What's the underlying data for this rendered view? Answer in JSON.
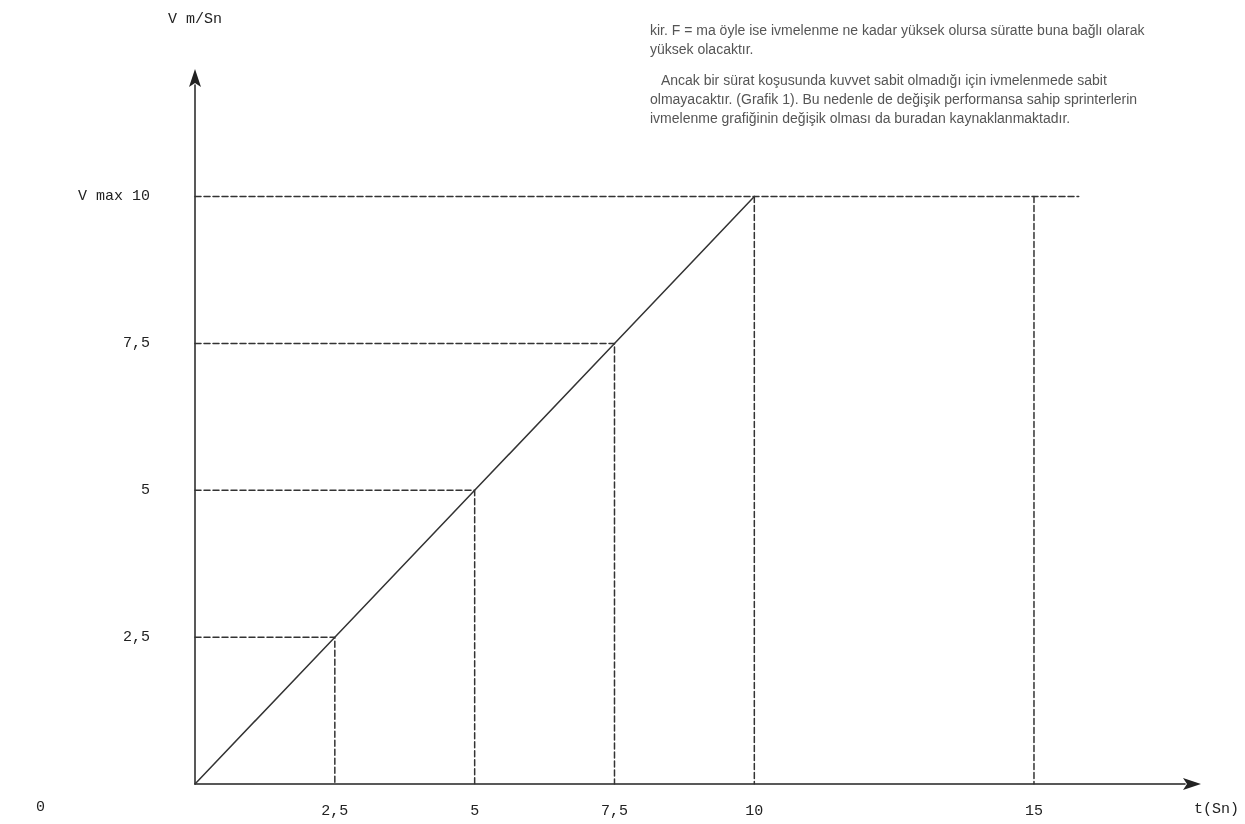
{
  "chart_data": {
    "type": "line",
    "ylabel": "V m/Sn",
    "xlabel": "t(Sn)",
    "xlim": [
      0,
      17.7
    ],
    "ylim": [
      0,
      11.9
    ],
    "xticks": [
      {
        "value": 2.5,
        "label": "2,5"
      },
      5,
      {
        "value": 7.5,
        "label": "7,5"
      },
      10,
      15
    ],
    "yticks": [
      {
        "value": 2.5,
        "label": "2,5"
      },
      5,
      {
        "value": 7.5,
        "label": "7,5"
      },
      {
        "value": 10,
        "label": "V max 10"
      }
    ],
    "marker": "none",
    "grid": false,
    "annotations": [
      "0",
      "kir. F = ma öyle ise ivmelenme ne kadar yüksek olursa süratte buna bağlı olarak yüksek olacaktır.",
      "Ancak bir sürat koşusunda kuvvet sabit olmadığı için ivmelenmede sabit olmayacaktır. (Grafik 1). Bu nedenle de değişik performansa sahip sprinterlerin ivmelenme grafiğinin değişik olması da buradan kaynaklanmaktadır."
    ],
    "series": [
      {
        "color": "#333333",
        "line_style": "solid",
        "x": [
          0,
          2.5,
          5,
          7.5,
          10
        ],
        "values": [
          0,
          2.5,
          5,
          7.5,
          10
        ]
      },
      {
        "color": "#333333",
        "line_style": "dashed",
        "x": [
          0,
          2.5,
          2.5
        ],
        "values": [
          2.5,
          2.5,
          0
        ]
      },
      {
        "color": "#333333",
        "line_style": "dashed",
        "x": [
          0,
          5,
          5
        ],
        "values": [
          5,
          5,
          0
        ]
      },
      {
        "color": "#333333",
        "line_style": "dashed",
        "x": [
          0,
          7.5,
          7.5
        ],
        "values": [
          7.5,
          7.5,
          0
        ]
      },
      {
        "color": "#333333",
        "line_style": "dashed",
        "x": [
          0,
          15.8
        ],
        "values": [
          10,
          10
        ]
      },
      {
        "color": "#333333",
        "line_style": "dashed",
        "x": [
          10,
          10
        ],
        "values": [
          10,
          0
        ]
      },
      {
        "color": "#333333",
        "line_style": "dashed",
        "x": [
          15,
          15
        ],
        "values": [
          10,
          0
        ]
      }
    ]
  }
}
